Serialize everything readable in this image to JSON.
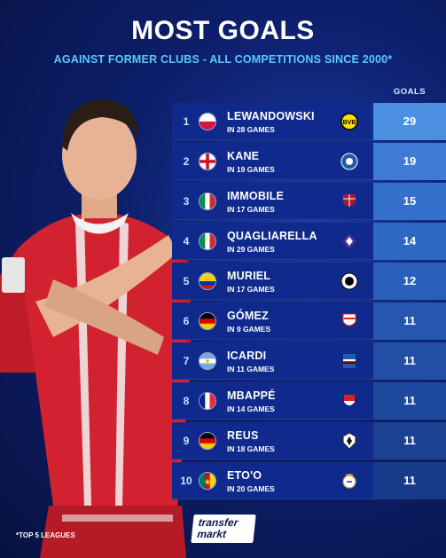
{
  "header": {
    "title": "MOST GOALS",
    "subtitle": "AGAINST FORMER CLUBS - ALL COMPETITIONS SINCE 2000*",
    "goals_column": "GOALS"
  },
  "rows": [
    {
      "rank": "1",
      "name": "LEWANDOWSKI",
      "games": "IN 28 GAMES",
      "goals": "29",
      "flag": "poland",
      "crest": "bvb-crest-icon",
      "goals_bg": "#4a8fe0"
    },
    {
      "rank": "2",
      "name": "KANE",
      "games": "IN 19 GAMES",
      "goals": "19",
      "flag": "england",
      "crest": "leicester-crest-icon",
      "goals_bg": "#3f7bd6"
    },
    {
      "rank": "3",
      "name": "IMMOBILE",
      "games": "IN 17 GAMES",
      "goals": "15",
      "flag": "italy",
      "crest": "genoa-crest-icon",
      "goals_bg": "#3570cc"
    },
    {
      "rank": "4",
      "name": "QUAGLIARELLA",
      "games": "IN 29 GAMES",
      "goals": "14",
      "flag": "italy",
      "crest": "fiorentina-crest-icon",
      "goals_bg": "#2f67c4"
    },
    {
      "rank": "5",
      "name": "MURIEL",
      "games": "IN 17 GAMES",
      "goals": "12",
      "flag": "colombia",
      "crest": "udinese-crest-icon",
      "goals_bg": "#2a5fbb"
    },
    {
      "rank": "6",
      "name": "GÓMEZ",
      "games": "IN 9 GAMES",
      "goals": "11",
      "flag": "germany",
      "crest": "stuttgart-crest-icon",
      "goals_bg": "#2656b0"
    },
    {
      "rank": "7",
      "name": "ICARDI",
      "games": "IN 11 GAMES",
      "goals": "11",
      "flag": "argentina",
      "crest": "sampdoria-crest-icon",
      "goals_bg": "#224fa6"
    },
    {
      "rank": "8",
      "name": "MBAPPÉ",
      "games": "IN 14 GAMES",
      "goals": "11",
      "flag": "france",
      "crest": "monaco-crest-icon",
      "goals_bg": "#1e489c"
    },
    {
      "rank": "9",
      "name": "REUS",
      "games": "IN 18 GAMES",
      "goals": "11",
      "flag": "germany",
      "crest": "gladbach-crest-icon",
      "goals_bg": "#1b4192"
    },
    {
      "rank": "10",
      "name": "ETO'O",
      "games": "IN 20 GAMES",
      "goals": "11",
      "flag": "cameroon",
      "crest": "real-madrid-crest-icon",
      "goals_bg": "#183b89"
    }
  ],
  "footer": {
    "footnote": "*TOP 5 LEAGUES",
    "logo_line1": "transfer",
    "logo_line2": "markt"
  }
}
